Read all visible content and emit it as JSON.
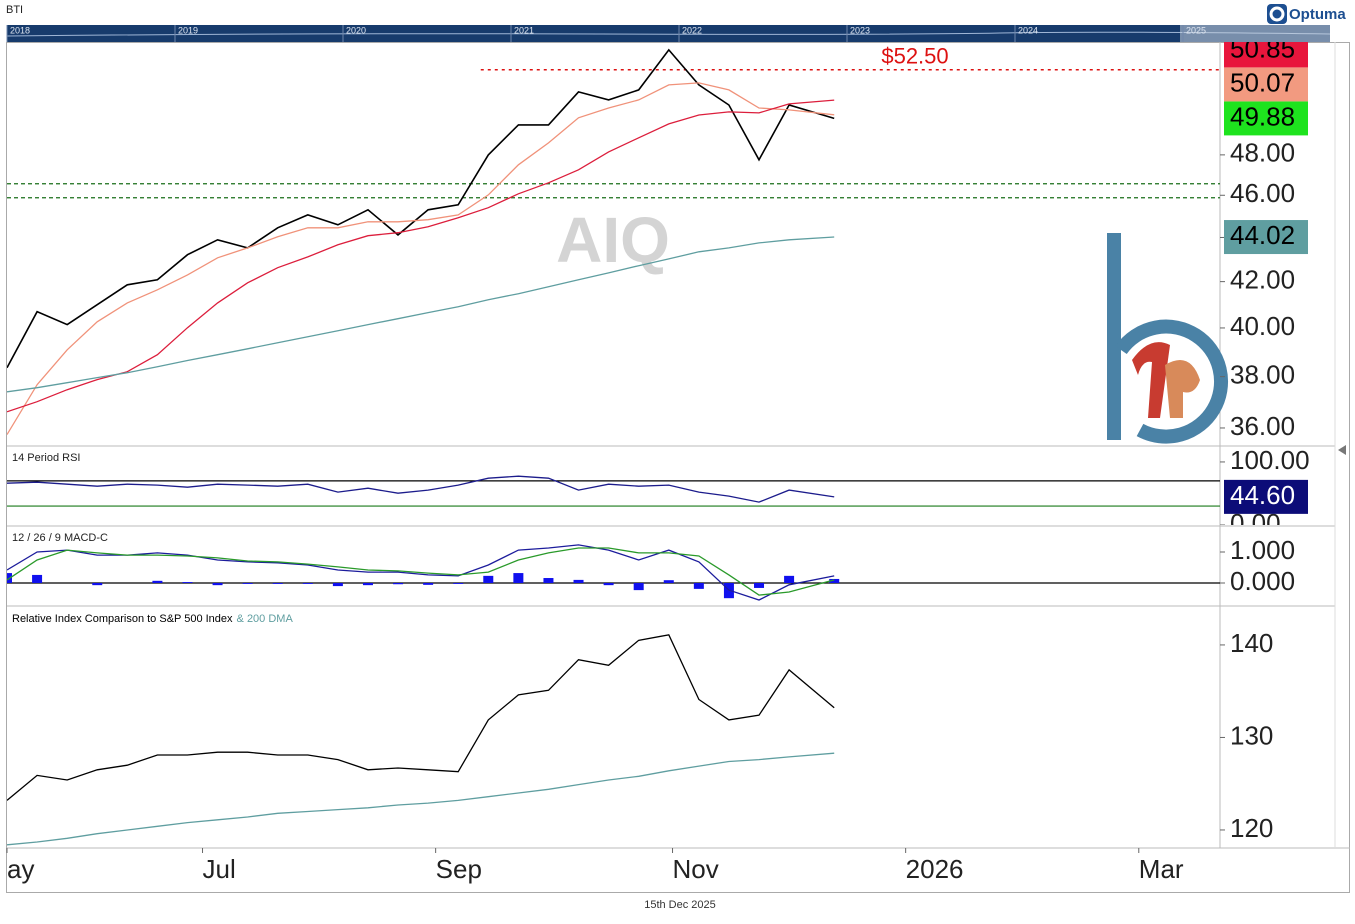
{
  "header": {
    "symbol": "BTI",
    "brand": "Optuma",
    "navigator_years": [
      "2018",
      "2019",
      "2020",
      "2021",
      "2022",
      "2023",
      "2024",
      "2025"
    ]
  },
  "footer": {
    "date": "15th Dec 2025"
  },
  "chart_data": [
    {
      "type": "line",
      "title": "AIQ",
      "log": true,
      "x": [
        0,
        8,
        16,
        24,
        32,
        40,
        48,
        56,
        64,
        72,
        80,
        88,
        96,
        104,
        112,
        120,
        128,
        136,
        144,
        152,
        160,
        168,
        176,
        184,
        192,
        200,
        208,
        220
      ],
      "xlim": [
        0,
        322.6
      ],
      "ylim": [
        35.36,
        54.06
      ],
      "yticks": [
        {
          "value": 36,
          "label": "36.00"
        },
        {
          "value": 38,
          "label": "38.00"
        },
        {
          "value": 40,
          "label": "40.00"
        },
        {
          "value": 42,
          "label": "42.00"
        },
        {
          "value": 44,
          "label": "44.00"
        },
        {
          "value": 46,
          "label": "46.00"
        },
        {
          "value": 48,
          "label": "48.00"
        }
      ],
      "hlines": [
        {
          "value": 46.56,
          "color": "#1a6e1a"
        },
        {
          "value": 45.88,
          "color": "#1a6e1a"
        }
      ],
      "annotations": [
        {
          "text": "$52.50",
          "value": 52.5,
          "from_x": 126,
          "color": "#dd1111"
        }
      ],
      "series": [
        {
          "color": "#000000",
          "values": [
            38.36,
            40.69,
            40.14,
            40.99,
            41.86,
            42.08,
            43.21,
            43.89,
            43.52,
            44.45,
            45.06,
            44.59,
            45.3,
            44.12,
            45.3,
            45.54,
            48.0,
            49.54,
            49.54,
            51.29,
            50.86,
            51.4,
            53.61,
            51.67,
            50.59,
            47.75,
            50.59,
            49.88
          ],
          "last_label": "49.88",
          "label_color": "#1ee31e",
          "label_text_color": "#000000"
        },
        {
          "color": "#f0927a",
          "values": [
            35.75,
            37.68,
            39.09,
            40.26,
            41.07,
            41.64,
            42.3,
            43.07,
            43.52,
            44.03,
            44.45,
            44.45,
            44.73,
            44.73,
            44.83,
            45.06,
            46.02,
            47.5,
            48.61,
            49.91,
            50.43,
            50.86,
            51.67,
            51.78,
            51.4,
            50.43,
            50.33,
            50.07
          ],
          "last_label": "50.07",
          "label_color": "#f29a80",
          "label_text_color": "#000000"
        },
        {
          "color": "#dc1e3c",
          "values": [
            36.62,
            37.01,
            37.48,
            37.88,
            38.2,
            38.89,
            40.01,
            41.07,
            41.95,
            42.62,
            43.11,
            43.66,
            44.08,
            44.22,
            44.5,
            44.92,
            45.4,
            46.07,
            46.61,
            47.25,
            48.15,
            48.87,
            49.59,
            50.06,
            50.22,
            50.17,
            50.65,
            50.85
          ],
          "last_label": "50.85",
          "label_color": "#e8163c",
          "label_text_color": "#000000"
        },
        {
          "color": "#5f9ea0",
          "values": [
            37.4,
            37.56,
            37.76,
            37.96,
            38.16,
            38.4,
            38.65,
            38.89,
            39.13,
            39.38,
            39.63,
            39.88,
            40.14,
            40.39,
            40.65,
            40.9,
            41.21,
            41.47,
            41.77,
            42.08,
            42.39,
            42.71,
            43.02,
            43.34,
            43.52,
            43.75,
            43.89,
            44.02
          ],
          "last_label": "44.02",
          "label_color": "#5f9ea0",
          "label_text_color": "#000000"
        }
      ]
    },
    {
      "type": "line",
      "legend": "14 Period RSI",
      "x": [
        0,
        8,
        16,
        24,
        32,
        40,
        48,
        56,
        64,
        72,
        80,
        88,
        96,
        104,
        112,
        120,
        128,
        136,
        144,
        152,
        160,
        168,
        176,
        184,
        192,
        200,
        208,
        220
      ],
      "xlim": [
        0,
        322.6
      ],
      "ylim": [
        0,
        123.7
      ],
      "yticks": [
        {
          "value": 100,
          "label": "100.00"
        },
        {
          "value": 0,
          "label": "0.00"
        }
      ],
      "hlines": [
        {
          "value": 70,
          "color": "#000000"
        },
        {
          "value": 30,
          "color": "#1a7a1a"
        }
      ],
      "series": [
        {
          "color": "#1c1c8c",
          "values": [
            66.3,
            67.9,
            64.7,
            61.6,
            64.7,
            63.2,
            60.0,
            64.7,
            63.2,
            61.6,
            64.7,
            52.1,
            58.4,
            50.5,
            55.3,
            63.2,
            74.2,
            77.4,
            74.2,
            55.3,
            64.7,
            61.6,
            63.2,
            52.1,
            45.8,
            36.3,
            55.3,
            44.6
          ],
          "last_label": "44.60",
          "label_color": "#0c0c78",
          "label_text_color": "#ffffff"
        }
      ]
    },
    {
      "type": "line",
      "legend": "12 / 26 / 9 MACD-C",
      "x": [
        0,
        8,
        16,
        24,
        32,
        40,
        48,
        56,
        64,
        72,
        80,
        88,
        96,
        104,
        112,
        120,
        128,
        136,
        144,
        152,
        160,
        168,
        176,
        184,
        192,
        200,
        208,
        220
      ],
      "xlim": [
        0,
        322.6
      ],
      "ylim": [
        -0.71,
        1.806
      ],
      "yticks": [
        {
          "value": 1,
          "label": "1.000"
        },
        {
          "value": 0,
          "label": "0.000"
        }
      ],
      "hlines": [
        {
          "value": 0,
          "color": "#000000"
        }
      ],
      "series": [
        {
          "type": "bar",
          "color": "#1010ee",
          "values": [
            0.32,
            0.26,
            0,
            -0.07,
            0,
            0.07,
            0.03,
            -0.07,
            -0.03,
            -0.03,
            -0.03,
            -0.1,
            -0.07,
            -0.04,
            -0.06,
            -0.03,
            0.23,
            0.32,
            0.16,
            0.1,
            -0.07,
            -0.23,
            0.09,
            -0.19,
            -0.49,
            -0.16,
            0.23,
            0.13
          ]
        },
        {
          "color": "#1c1c9c",
          "values": [
            0.42,
            1.0,
            1.06,
            0.9,
            0.9,
            0.97,
            0.9,
            0.74,
            0.68,
            0.65,
            0.58,
            0.42,
            0.35,
            0.35,
            0.26,
            0.23,
            0.58,
            1.06,
            1.13,
            1.23,
            1.06,
            0.74,
            1.06,
            0.68,
            -0.23,
            -0.55,
            -0.06,
            0.23
          ]
        },
        {
          "color": "#2a9a2a",
          "values": [
            0.1,
            0.74,
            1.06,
            0.97,
            0.9,
            0.9,
            0.87,
            0.81,
            0.71,
            0.68,
            0.61,
            0.52,
            0.42,
            0.39,
            0.32,
            0.26,
            0.35,
            0.74,
            0.97,
            1.13,
            1.13,
            0.97,
            0.97,
            0.87,
            0.26,
            -0.39,
            -0.29,
            0.1
          ]
        }
      ]
    },
    {
      "type": "line",
      "x": [
        0,
        8,
        16,
        24,
        32,
        40,
        48,
        56,
        64,
        72,
        80,
        88,
        96,
        104,
        112,
        120,
        128,
        136,
        144,
        152,
        160,
        168,
        176,
        184,
        192,
        200,
        208,
        220
      ],
      "xlim": [
        0,
        322.6
      ],
      "ylim": [
        118.05,
        144.1
      ],
      "yticks": [
        120,
        130,
        140
      ],
      "xticks": [
        {
          "value": 0,
          "label": "ay"
        },
        {
          "value": 52,
          "label": "Jul"
        },
        {
          "value": 114,
          "label": "Sep"
        },
        {
          "value": 177,
          "label": "Nov"
        },
        {
          "value": 239,
          "label": "2026"
        },
        {
          "value": 301,
          "label": "Mar"
        }
      ],
      "series": [
        {
          "name": "Relative Index Comparison to S&P 500 Index",
          "color": "#000000",
          "values": [
            123.2,
            125.9,
            125.4,
            126.5,
            127.0,
            128.1,
            128.1,
            128.4,
            128.4,
            128.1,
            128.1,
            127.6,
            126.5,
            126.7,
            126.5,
            126.3,
            131.9,
            134.6,
            135.1,
            138.4,
            137.8,
            140.5,
            141.1,
            134.1,
            131.9,
            132.4,
            137.3,
            133.2
          ]
        },
        {
          "name": "& 200 DMA",
          "color": "#5f9ea0",
          "values": [
            118.4,
            118.7,
            119.1,
            119.6,
            120.0,
            120.4,
            120.8,
            121.1,
            121.4,
            121.8,
            122.0,
            122.2,
            122.4,
            122.7,
            122.9,
            123.2,
            123.6,
            124.0,
            124.4,
            124.9,
            125.4,
            125.8,
            126.4,
            126.9,
            127.4,
            127.6,
            127.9,
            128.3
          ]
        }
      ]
    }
  ]
}
